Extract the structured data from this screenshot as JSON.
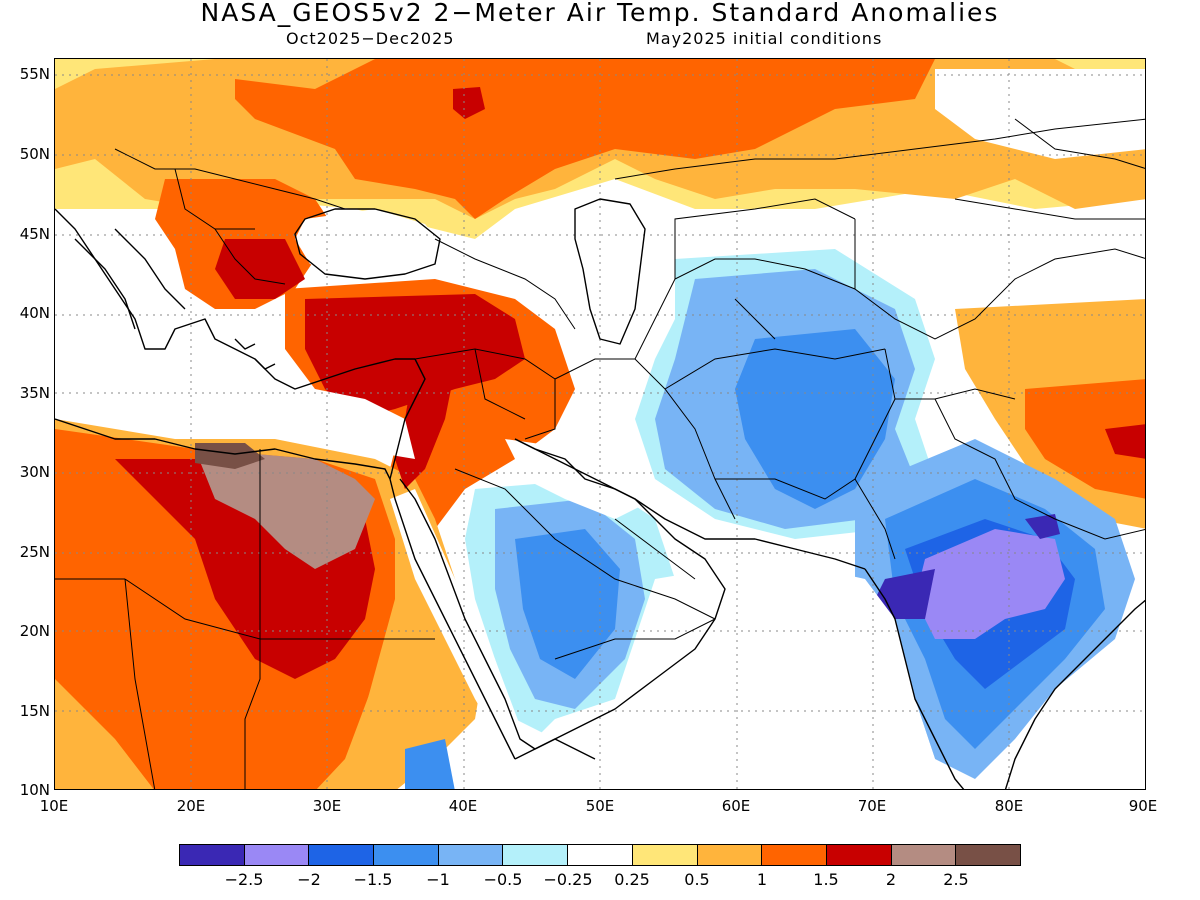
{
  "title": "NASA_GEOS5v2 2−Meter Air Temp. Standard Anomalies",
  "subtitle_period": "Oct2025−Dec2025",
  "subtitle_init": "May2025 initial conditions",
  "lat_labels": [
    "55N",
    "50N",
    "45N",
    "40N",
    "35N",
    "30N",
    "25N",
    "20N",
    "15N",
    "10N"
  ],
  "lon_labels": [
    "10E",
    "20E",
    "30E",
    "40E",
    "50E",
    "60E",
    "70E",
    "80E",
    "90E"
  ],
  "colorbar": {
    "colors": [
      "#3a28b4",
      "#9a88f5",
      "#1e64e6",
      "#3c8ff0",
      "#78b4f5",
      "#b4f0fa",
      "#ffffff",
      "#ffe678",
      "#ffb43c",
      "#ff6400",
      "#c80000",
      "#b48c82",
      "#785046"
    ],
    "labels": [
      "−2.5",
      "−2",
      "−1.5",
      "−1",
      "−0.5",
      "−0.25",
      "0.25",
      "0.5",
      "1",
      "1.5",
      "2",
      "2.5"
    ]
  },
  "map": {
    "projection": "cylindrical equidistant",
    "lon_range": [
      10,
      90
    ],
    "lat_range": [
      10,
      56
    ],
    "gridlines": "dotted every 5° latitude, 10° longitude",
    "features": [
      "coastlines",
      "country borders"
    ]
  }
}
